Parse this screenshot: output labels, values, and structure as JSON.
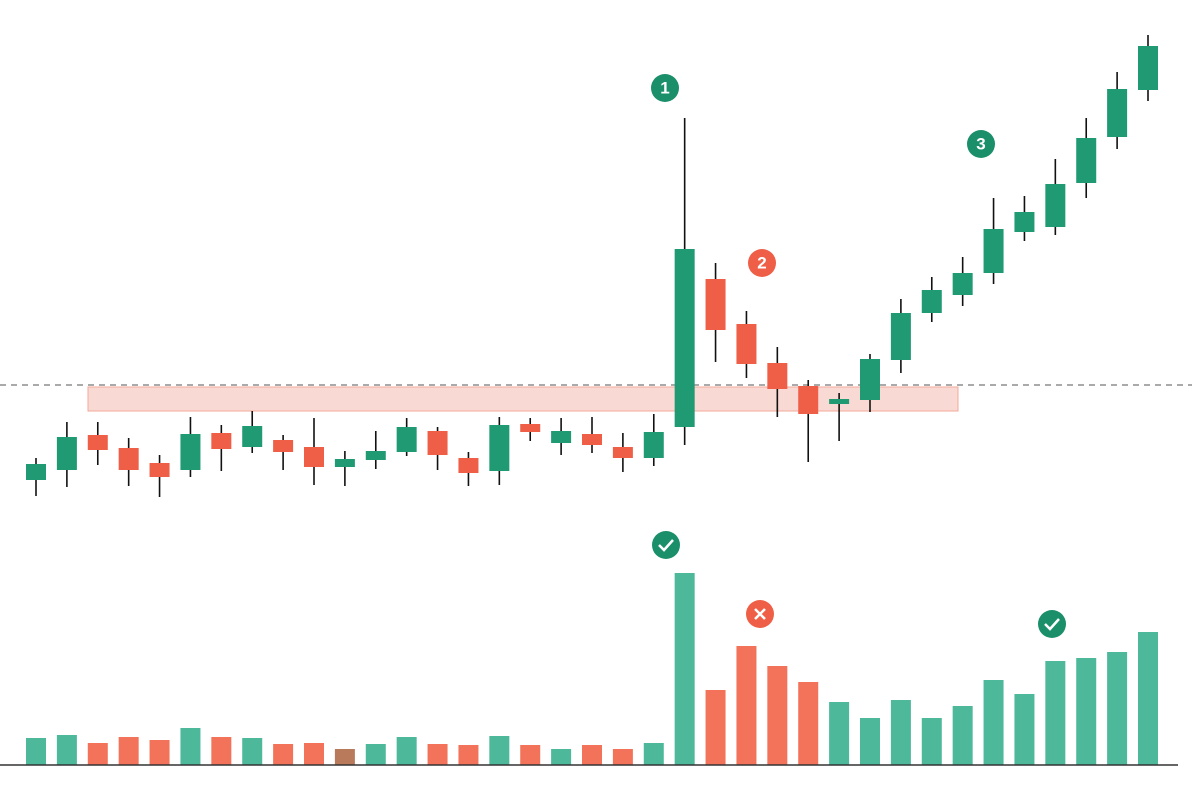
{
  "chart_data": {
    "type": "candlestick",
    "open": [
      20,
      30,
      65,
      52,
      37,
      30,
      67,
      53,
      60,
      53,
      33,
      40,
      48,
      69,
      42,
      29,
      76,
      57,
      66,
      53,
      42,
      73,
      221,
      176,
      137,
      114,
      96,
      100,
      140,
      187,
      205,
      227,
      268,
      273,
      317,
      363,
      410
    ],
    "high": [
      42,
      78,
      78,
      62,
      45,
      83,
      75,
      89,
      65,
      82,
      49,
      69,
      82,
      73,
      48,
      83,
      82,
      82,
      83,
      67,
      86,
      382,
      237,
      189,
      153,
      120,
      107,
      146,
      201,
      223,
      243,
      302,
      304,
      341,
      382,
      428,
      465
    ],
    "low": [
      4,
      13,
      35,
      14,
      3,
      23,
      29,
      47,
      30,
      15,
      14,
      31,
      44,
      30,
      14,
      15,
      59,
      45,
      47,
      28,
      34,
      55,
      138,
      122,
      83,
      38,
      59,
      88,
      127,
      178,
      194,
      216,
      259,
      265,
      302,
      351,
      399
    ],
    "close": [
      36,
      63,
      50,
      30,
      23,
      66,
      51,
      74,
      48,
      33,
      41,
      49,
      73,
      45,
      27,
      75,
      68,
      69,
      55,
      42,
      68,
      251,
      170,
      136,
      111,
      86,
      101,
      141,
      187,
      210,
      227,
      271,
      288,
      316,
      362,
      411,
      454
    ],
    "up_color": "#1f9a73",
    "down_color": "#ef5f47",
    "wick_color": "#111111",
    "ylim": [
      0,
      470
    ],
    "reference_line": 115,
    "zone": [
      89,
      113
    ],
    "zone_color": "#f7c9c0",
    "volume": {
      "values": [
        27,
        30,
        22,
        28,
        25,
        37,
        28,
        27,
        21,
        22,
        16,
        21,
        28,
        21,
        20,
        29,
        20,
        16,
        20,
        16,
        22,
        192,
        75,
        119,
        99,
        83,
        63,
        47,
        65,
        47,
        59,
        85,
        71,
        104,
        107,
        113,
        133
      ],
      "colors": [
        "#4db89a",
        "#4db89a",
        "#f2735a",
        "#f2735a",
        "#f2735a",
        "#4db89a",
        "#f2735a",
        "#4db89a",
        "#f2735a",
        "#f2735a",
        "#b87a5a",
        "#4db89a",
        "#4db89a",
        "#f2735a",
        "#f2735a",
        "#4db89a",
        "#f2735a",
        "#4db89a",
        "#f2735a",
        "#f2735a",
        "#4db89a",
        "#4db89a",
        "#f2735a",
        "#f2735a",
        "#f2735a",
        "#f2735a",
        "#4db89a",
        "#4db89a",
        "#4db89a",
        "#4db89a",
        "#4db89a",
        "#4db89a",
        "#4db89a",
        "#4db89a",
        "#4db89a",
        "#4db89a",
        "#4db89a"
      ],
      "ylim": [
        0,
        200
      ]
    },
    "annotations": [
      {
        "label": "1",
        "color": "#1a8f6a"
      },
      {
        "label": "2",
        "color": "#ef5f47"
      },
      {
        "label": "3",
        "color": "#1a8f6a"
      }
    ]
  }
}
